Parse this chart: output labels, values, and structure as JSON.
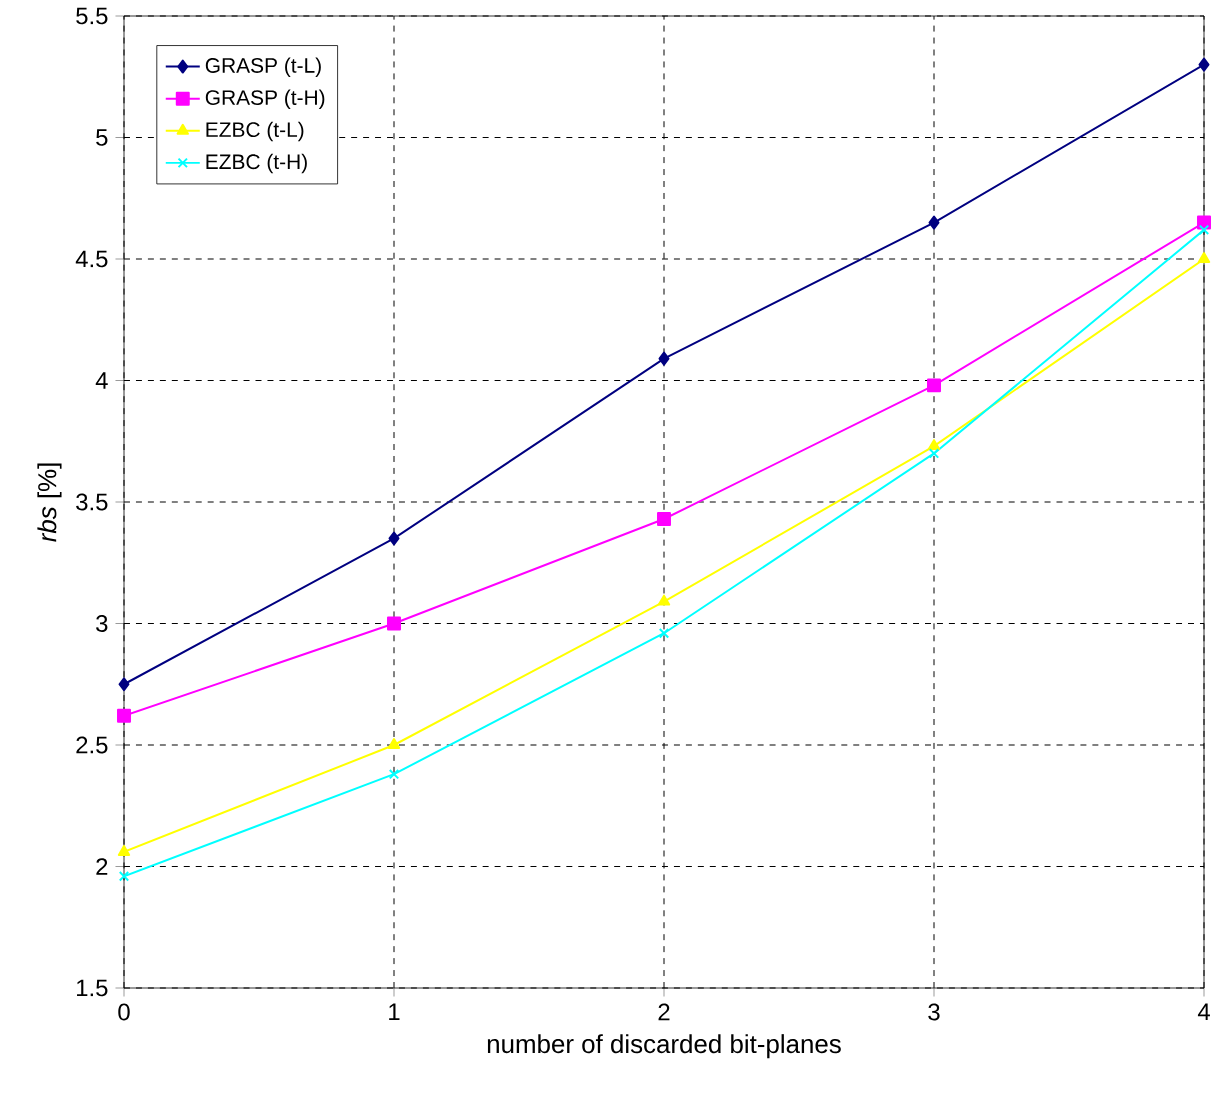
{
  "chart_data": {
    "type": "line",
    "xlabel": "number of discarded bit-planes",
    "ylabel": "*rbs* [%]",
    "x": [
      0,
      1,
      2,
      3,
      4
    ],
    "xlim": [
      0,
      4
    ],
    "xticks": [
      0,
      1,
      2,
      3,
      4
    ],
    "ylim": [
      1.5,
      5.5
    ],
    "yticks": [
      1.5,
      2,
      2.5,
      3,
      3.5,
      4,
      4.5,
      5,
      5.5
    ],
    "grid": true,
    "legend": "top left",
    "line_style": "solid",
    "series": [
      {
        "name": "GRASP (t-L)",
        "color": "#000080",
        "marker": "diamond",
        "values": [
          2.75,
          3.35,
          4.09,
          4.65,
          5.3
        ]
      },
      {
        "name": "GRASP (t-H)",
        "color": "#ff00ff",
        "marker": "square",
        "values": [
          2.62,
          3.0,
          3.43,
          3.98,
          4.65
        ]
      },
      {
        "name": "EZBC (t-L)",
        "color": "#ffff00",
        "marker": "triangle",
        "values": [
          2.06,
          2.5,
          3.09,
          3.73,
          4.5
        ]
      },
      {
        "name": "EZBC (t-H)",
        "color": "#00ffff",
        "marker": "cross",
        "values": [
          1.96,
          2.38,
          2.96,
          3.7,
          4.62
        ]
      }
    ]
  }
}
